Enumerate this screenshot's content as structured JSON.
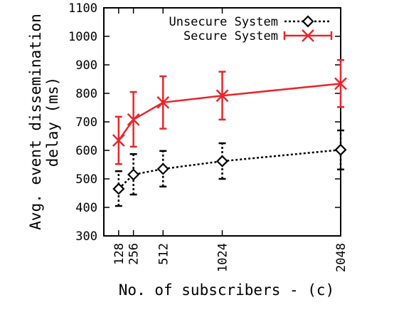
{
  "chart_data": {
    "type": "line",
    "title": "",
    "xlabel": "No. of subscribers - (c)",
    "ylabel": "Avg. event dissemination delay (ms)",
    "x": [
      128,
      256,
      512,
      1024,
      2048
    ],
    "x_tick_labels": [
      "128",
      "256",
      "512",
      "1024",
      "2048"
    ],
    "xlim": [
      0,
      2048
    ],
    "ylim": [
      300,
      1100
    ],
    "y_ticks": [
      300,
      400,
      500,
      600,
      700,
      800,
      900,
      1000,
      1100
    ],
    "y_tick_labels": [
      "300",
      "400",
      "500",
      "600",
      "700",
      "800",
      "900",
      "1000",
      "1100"
    ],
    "grid": false,
    "legend_position": "top-right",
    "series": [
      {
        "name": "Unsecure System",
        "values": [
          465,
          515,
          535,
          562,
          602
        ],
        "error_low": [
          405,
          445,
          473,
          500,
          533
        ],
        "error_high": [
          527,
          587,
          598,
          625,
          670
        ],
        "color": "#000000",
        "line_style": "dotted",
        "marker": "diamond"
      },
      {
        "name": "Secure System",
        "values": [
          635,
          708,
          768,
          792,
          834
        ],
        "error_low": [
          552,
          613,
          676,
          708,
          752
        ],
        "error_high": [
          718,
          805,
          860,
          876,
          917
        ],
        "color": "#e8262c",
        "line_style": "solid",
        "marker": "x"
      }
    ]
  }
}
